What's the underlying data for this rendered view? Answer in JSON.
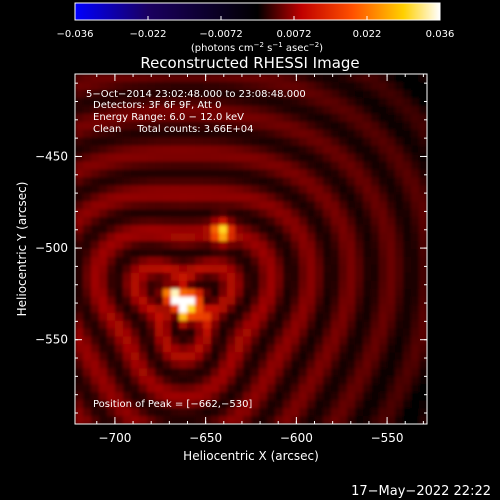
{
  "colors": {
    "background": "#000000",
    "foreground": "#ffffff",
    "colorbar_stops": [
      "#0000ff",
      "#1a0060",
      "#000000",
      "#c00000",
      "#ff5000",
      "#ffd000",
      "#ffffff"
    ]
  },
  "colorbar": {
    "min": -0.036,
    "max": 0.036,
    "tick_labels": [
      "−0.036",
      "−0.022",
      "−0.0072",
      "0.0072",
      "0.022",
      "0.036"
    ],
    "unit_main": "(photons cm",
    "unit_sup1": "−2",
    "unit_mid": " s",
    "unit_sup2": "−1",
    "unit_end": " asec",
    "unit_sup3": "−2",
    "unit_close": ")"
  },
  "chart_data": {
    "type": "heatmap",
    "title": "Reconstructed RHESSI Image",
    "xlabel": "Heliocentric X (arcsec)",
    "ylabel": "Heliocentric Y (arcsec)",
    "xlim": [
      -722,
      -528
    ],
    "ylim": [
      -596,
      -405
    ],
    "x_ticks": [
      -700,
      -650,
      -600,
      -550
    ],
    "x_tick_labels": [
      "−700",
      "−650",
      "−600",
      "−550"
    ],
    "y_ticks": [
      -450,
      -500,
      -550
    ],
    "y_tick_labels": [
      "−450",
      "−500",
      "−550"
    ],
    "sources": [
      {
        "x": -662,
        "y": -530,
        "relative_intensity": 1.0
      },
      {
        "x": -641,
        "y": -491,
        "relative_intensity": 0.55
      }
    ],
    "peak": [
      -662,
      -530
    ]
  },
  "annotations": {
    "time_range": "5−Oct−2014 23:02:48.000 to 23:08:48.000",
    "detectors": "Detectors: 3F 6F 9F, Att 0",
    "energy": "Energy Range: 6.0 − 12.0 keV",
    "clean": "Clean     Total counts: 3.66E+04",
    "peak_position": "Position of Peak = [−662,−530]"
  },
  "timestamp": "17−May−2022 22:22"
}
